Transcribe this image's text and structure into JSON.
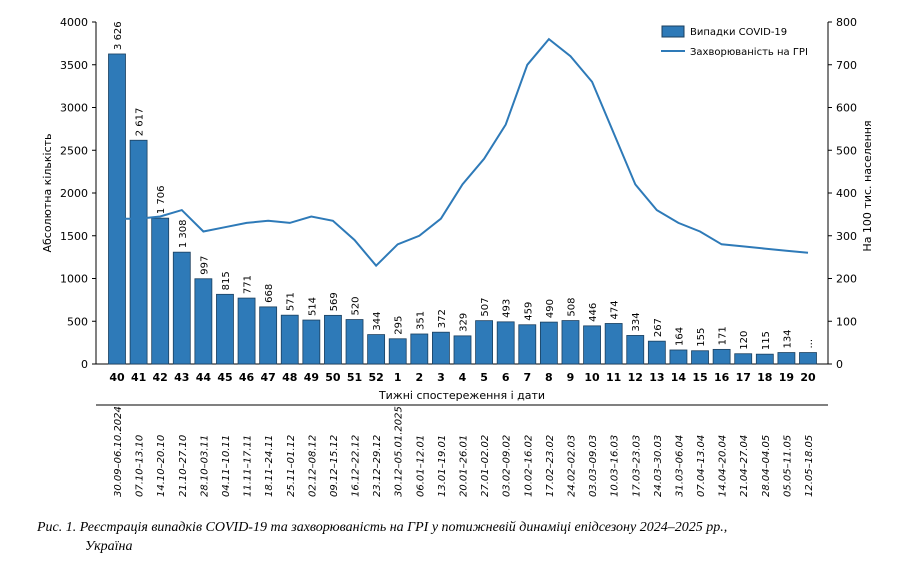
{
  "chart_data": {
    "type": "bar+line",
    "categories": [
      "40",
      "41",
      "42",
      "43",
      "44",
      "45",
      "46",
      "47",
      "48",
      "49",
      "50",
      "51",
      "52",
      "1",
      "2",
      "3",
      "4",
      "5",
      "6",
      "7",
      "8",
      "9",
      "10",
      "11",
      "12",
      "13",
      "14",
      "15",
      "16",
      "17",
      "18",
      "19",
      "20"
    ],
    "dates": [
      "30.09–06.10.2024",
      "07.10–13.10",
      "14.10–20.10",
      "21.10–27.10",
      "28.10–03.11",
      "04.11–10.11",
      "11.11–17.11",
      "18.11–24.11",
      "25.11–01.12",
      "02.12–08.12",
      "09.12–15.12",
      "16.12–22.12",
      "23.12–29.12",
      "30.12–05.01.2025",
      "06.01–12.01",
      "13.01–19.01",
      "20.01–26.01",
      "27.01–02.02",
      "03.02–09.02",
      "10.02–16.02",
      "17.02–23.02",
      "24.02–02.03",
      "03.03–09.03",
      "10.03–16.03",
      "17.03–23.03",
      "24.03–30.03",
      "31.03–06.04",
      "07.04–13.04",
      "14.04–20.04",
      "21.04–27.04",
      "28.04–04.05",
      "05.05–11.05",
      "12.05–18.05"
    ],
    "series": [
      {
        "name": "Випадки COVID-19",
        "axis": "left",
        "type": "bar",
        "color": "#2e7ab8",
        "values": [
          3626,
          2617,
          1706,
          1308,
          997,
          815,
          771,
          668,
          571,
          514,
          569,
          520,
          344,
          295,
          351,
          372,
          329,
          507,
          493,
          459,
          490,
          508,
          446,
          474,
          334,
          267,
          164,
          155,
          171,
          120,
          115,
          134,
          134
        ],
        "labels": [
          "3 626",
          "2 617",
          "1 706",
          "1 308",
          "997",
          "815",
          "771",
          "668",
          "571",
          "514",
          "569",
          "520",
          "344",
          "295",
          "351",
          "372",
          "329",
          "507",
          "493",
          "459",
          "490",
          "508",
          "446",
          "474",
          "334",
          "267",
          "164",
          "155",
          "171",
          "120",
          "115",
          "134",
          "..."
        ]
      },
      {
        "name": "Захворюваність  на ГРІ",
        "axis": "right",
        "type": "line",
        "color": "#2e7ab8",
        "values": [
          340,
          340,
          345,
          360,
          310,
          320,
          330,
          335,
          330,
          345,
          335,
          290,
          230,
          280,
          300,
          340,
          420,
          480,
          560,
          700,
          760,
          720,
          660,
          540,
          420,
          360,
          330,
          310,
          280,
          275,
          270,
          265,
          260
        ]
      }
    ],
    "y_left": {
      "label": "Абсолютна кількість",
      "ylim": [
        0,
        4000
      ],
      "ticks": [
        "0",
        "500",
        "1000",
        "1500",
        "2000",
        "2500",
        "3000",
        "3500",
        "4000"
      ]
    },
    "y_right": {
      "label": "На 100 тис. населення",
      "ylim": [
        0,
        800
      ],
      "ticks": [
        "0",
        "100",
        "200",
        "300",
        "400",
        "500",
        "600",
        "700",
        "800"
      ]
    },
    "xlabel": "Тижні спостереження і дати",
    "legend_position": "top-right",
    "grid": false
  },
  "caption": {
    "line1": "Рис. 1. Реєстрація випадків COVID-19 та захворюваність на ГРІ у потижневій динаміці епідсезону 2024–2025 рр.,",
    "line2": "Україна"
  }
}
